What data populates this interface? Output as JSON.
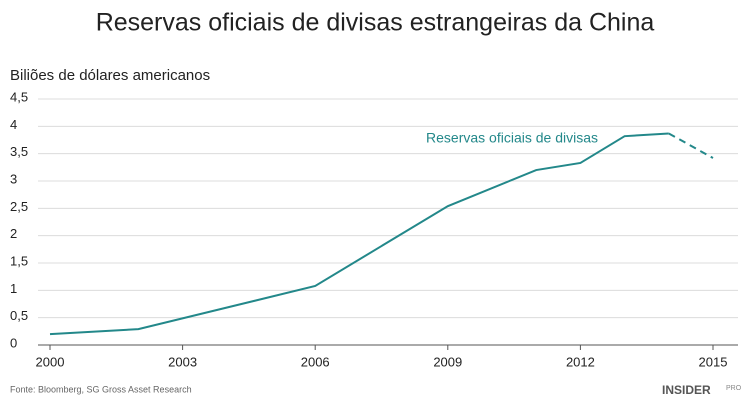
{
  "chart_data": {
    "type": "line",
    "title": "Reservas oficiais de divisas estrangeiras da China",
    "y_axis_label": "Biliões de dólares americanos",
    "x": [
      2000,
      2002,
      2006,
      2009,
      2011,
      2012,
      2013,
      2014,
      2015
    ],
    "series": [
      {
        "name": "Reservas oficiais de divisas",
        "color": "#23888a",
        "values": [
          0.2,
          0.29,
          1.08,
          2.54,
          3.2,
          3.33,
          3.82,
          3.87,
          3.42
        ]
      }
    ],
    "dashed_from": 2014,
    "xlim": [
      2000,
      2015
    ],
    "xticks": [
      2000,
      2003,
      2006,
      2009,
      2012,
      2015
    ],
    "ylim": [
      0,
      4.5
    ],
    "yticks": [
      0,
      {
        "value": 0.5,
        "label": "0,5"
      },
      1,
      {
        "value": 1.5,
        "label": "1,5"
      },
      2,
      {
        "value": 2.5,
        "label": "2,5"
      },
      3,
      {
        "value": 3.5,
        "label": "3,5"
      },
      4,
      {
        "value": 4.5,
        "label": "4,5"
      }
    ],
    "grid": true,
    "source": "Fonte: Bloomberg, SG Gross Asset Research",
    "logo": "INSIDER",
    "logo_badge": "PRO"
  }
}
